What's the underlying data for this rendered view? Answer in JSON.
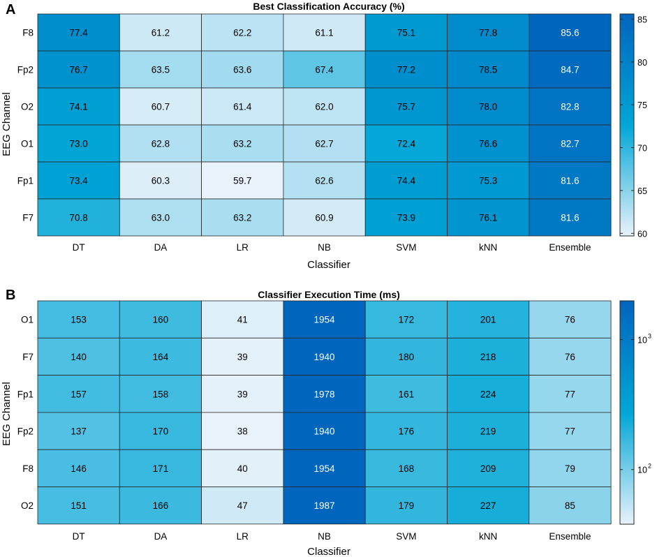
{
  "colors": {
    "low": "#e8f2fa",
    "mid": "#00a6d6",
    "high": "#0065bd",
    "grid": "#262626"
  },
  "chart_data": [
    {
      "panel": "A",
      "type": "heatmap",
      "title": "Best Classification Accuracy (%)",
      "xlabel": "Classifier",
      "ylabel": "EEG Channel",
      "x_categories": [
        "DT",
        "DA",
        "LR",
        "NB",
        "SVM",
        "kNN",
        "Ensemble"
      ],
      "y_categories": [
        "F8",
        "Fp2",
        "O2",
        "O1",
        "Fp1",
        "F7"
      ],
      "values": [
        [
          77.4,
          61.2,
          62.2,
          61.1,
          75.1,
          77.8,
          85.6
        ],
        [
          76.7,
          63.5,
          63.6,
          67.4,
          77.2,
          78.5,
          84.7
        ],
        [
          74.1,
          60.7,
          61.4,
          62.0,
          75.7,
          78.0,
          82.8
        ],
        [
          73.0,
          62.8,
          63.2,
          62.7,
          72.4,
          76.6,
          82.7
        ],
        [
          73.4,
          60.3,
          59.7,
          62.6,
          74.4,
          75.3,
          81.6
        ],
        [
          70.8,
          63.0,
          63.2,
          60.9,
          73.9,
          76.1,
          81.6
        ]
      ],
      "colorbar": {
        "scale": "linear",
        "range": [
          59.7,
          85.6
        ],
        "ticks": [
          60,
          65,
          70,
          75,
          80,
          85
        ]
      }
    },
    {
      "panel": "B",
      "type": "heatmap",
      "title": "Classifier Execution Time (ms)",
      "xlabel": "Classifier",
      "ylabel": "EEG Channel",
      "x_categories": [
        "DT",
        "DA",
        "LR",
        "NB",
        "SVM",
        "kNN",
        "Ensemble"
      ],
      "y_categories": [
        "O1",
        "F7",
        "Fp1",
        "Fp2",
        "F8",
        "O2"
      ],
      "values": [
        [
          153,
          160,
          41,
          1954,
          172,
          201,
          76
        ],
        [
          140,
          164,
          39,
          1940,
          180,
          218,
          76
        ],
        [
          157,
          158,
          39,
          1978,
          161,
          224,
          77
        ],
        [
          137,
          170,
          38,
          1940,
          176,
          219,
          77
        ],
        [
          146,
          171,
          40,
          1954,
          168,
          209,
          79
        ],
        [
          151,
          166,
          47,
          1987,
          179,
          227,
          85
        ]
      ],
      "colorbar": {
        "scale": "log",
        "range": [
          38,
          1987
        ],
        "ticks": [
          100,
          1000
        ],
        "tick_labels": [
          {
            "base": "10",
            "exp": "2"
          },
          {
            "base": "10",
            "exp": "3"
          }
        ]
      }
    }
  ]
}
